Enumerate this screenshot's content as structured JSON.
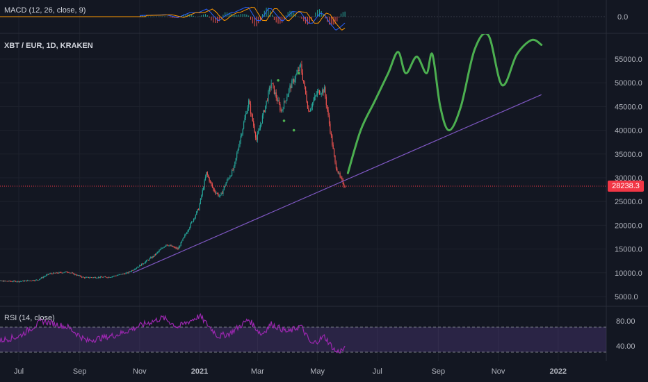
{
  "symbol": "XBT / EUR, 1D, KRAKEN",
  "macd": {
    "label": "MACD (12, 26, close, 9)",
    "zero_label": "0.0"
  },
  "rsi": {
    "label": "RSI (14, close)",
    "levels": [
      "80.00",
      "40.00"
    ]
  },
  "price_axis": [
    "55000.0",
    "50000.0",
    "45000.0",
    "40000.0",
    "35000.0",
    "30000.0",
    "25000.0",
    "20000.0",
    "15000.0",
    "10000.0",
    "5000.0"
  ],
  "last_price": "28238.3",
  "time_axis": [
    "Jul",
    "Sep",
    "Nov",
    "2021",
    "Mar",
    "May",
    "Jul",
    "Sep",
    "Nov",
    "2022"
  ],
  "colors": {
    "bg": "#131722",
    "up": "#26a69a",
    "down": "#ef5350",
    "trendline": "#7e57c2",
    "forecast": "#4caf50",
    "rsi": "#9c27b0",
    "macd": "#2962ff",
    "signal": "#ff9800"
  },
  "chart_data": {
    "type": "candlestick",
    "ylim": [
      3000,
      58500
    ],
    "price_points": [
      [
        "2020-06-01",
        8300
      ],
      [
        "2020-07-01",
        8200
      ],
      [
        "2020-07-20",
        8500
      ],
      [
        "2020-08-01",
        9800
      ],
      [
        "2020-08-20",
        10200
      ],
      [
        "2020-09-05",
        9000
      ],
      [
        "2020-10-01",
        9100
      ],
      [
        "2020-10-20",
        10000
      ],
      [
        "2020-11-01",
        11500
      ],
      [
        "2020-11-15",
        13500
      ],
      [
        "2020-11-28",
        16000
      ],
      [
        "2020-12-10",
        15000
      ],
      [
        "2020-12-20",
        19000
      ],
      [
        "2020-12-31",
        23500
      ],
      [
        "2021-01-08",
        31000
      ],
      [
        "2021-01-15",
        27500
      ],
      [
        "2021-01-22",
        26000
      ],
      [
        "2021-01-28",
        29000
      ],
      [
        "2021-02-05",
        32000
      ],
      [
        "2021-02-10",
        37000
      ],
      [
        "2021-02-20",
        46000
      ],
      [
        "2021-02-28",
        38000
      ],
      [
        "2021-03-10",
        46000
      ],
      [
        "2021-03-15",
        50000
      ],
      [
        "2021-03-25",
        44000
      ],
      [
        "2021-04-03",
        49000
      ],
      [
        "2021-04-14",
        53500
      ],
      [
        "2021-04-22",
        44000
      ],
      [
        "2021-05-01",
        48000
      ],
      [
        "2021-05-08",
        48500
      ],
      [
        "2021-05-14",
        40000
      ],
      [
        "2021-05-19",
        33000
      ],
      [
        "2021-05-24",
        30000
      ],
      [
        "2021-05-29",
        28238
      ]
    ],
    "trendline": [
      [
        "2020-10-25",
        10000
      ],
      [
        "2021-12-15",
        47500
      ]
    ],
    "forecast": [
      [
        "2021-06-01",
        31000
      ],
      [
        "2021-06-14",
        40000
      ],
      [
        "2021-06-28",
        46000
      ],
      [
        "2021-07-12",
        52000
      ],
      [
        "2021-07-22",
        56500
      ],
      [
        "2021-07-30",
        52000
      ],
      [
        "2021-08-10",
        55500
      ],
      [
        "2021-08-20",
        52000
      ],
      [
        "2021-08-26",
        56000
      ],
      [
        "2021-09-03",
        45000
      ],
      [
        "2021-09-12",
        40000
      ],
      [
        "2021-09-24",
        45000
      ],
      [
        "2021-10-08",
        57000
      ],
      [
        "2021-10-22",
        60000
      ],
      [
        "2021-11-05",
        49500
      ],
      [
        "2021-11-20",
        56000
      ],
      [
        "2021-12-05",
        59000
      ],
      [
        "2021-12-15",
        58000
      ]
    ],
    "dots": [
      [
        "2021-03-22",
        50500
      ],
      [
        "2021-03-28",
        42000
      ],
      [
        "2021-04-07",
        40000
      ],
      [
        "2021-04-12",
        52000
      ]
    ],
    "rsi_points": [
      [
        "2020-06-01",
        45
      ],
      [
        "2020-07-01",
        55
      ],
      [
        "2020-07-25",
        80
      ],
      [
        "2020-08-20",
        70
      ],
      [
        "2020-09-08",
        48
      ],
      [
        "2020-10-10",
        58
      ],
      [
        "2020-11-01",
        72
      ],
      [
        "2020-11-25",
        85
      ],
      [
        "2020-12-10",
        70
      ],
      [
        "2021-01-01",
        88
      ],
      [
        "2021-01-20",
        55
      ],
      [
        "2021-02-01",
        60
      ],
      [
        "2021-02-20",
        82
      ],
      [
        "2021-03-05",
        58
      ],
      [
        "2021-03-15",
        75
      ],
      [
        "2021-04-01",
        62
      ],
      [
        "2021-04-14",
        72
      ],
      [
        "2021-04-25",
        42
      ],
      [
        "2021-05-08",
        55
      ],
      [
        "2021-05-20",
        30
      ],
      [
        "2021-05-29",
        35
      ]
    ]
  }
}
